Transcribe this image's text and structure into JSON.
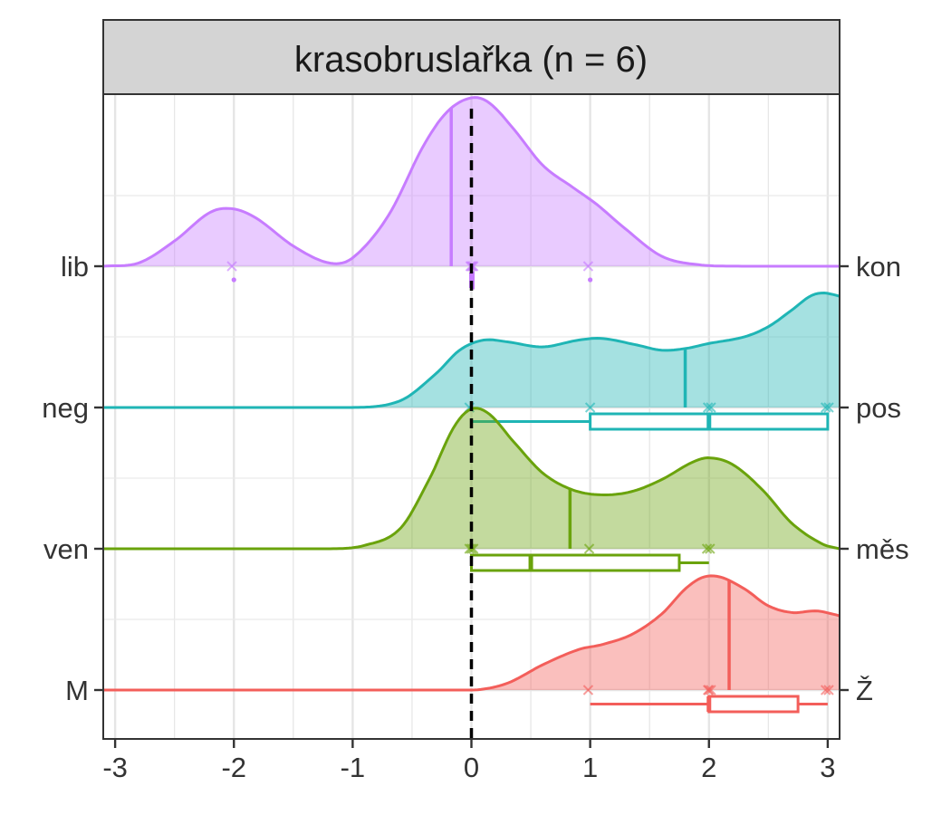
{
  "chart_data": {
    "type": "ridgeline",
    "title": "krasobruslařka (n = 6)",
    "xlabel": "",
    "ylabel": "",
    "xlim": [
      -3.1,
      3.1
    ],
    "x_ticks": [
      -3,
      -2,
      -1,
      0,
      1,
      2,
      3
    ],
    "x_tick_labels": [
      "-3",
      "-2",
      "-1",
      "0",
      "1",
      "2",
      "3"
    ],
    "reference_line_x": 0,
    "grid": true,
    "rows": [
      {
        "left_label": "lib",
        "right_label": "kon",
        "color": "#C77CFF",
        "observations": [
          -2,
          0,
          0,
          0,
          0,
          1
        ],
        "mean": -0.17,
        "density": [
          [
            -3.1,
            0.0
          ],
          [
            -2.8,
            0.02
          ],
          [
            -2.5,
            0.15
          ],
          [
            -2.2,
            0.32
          ],
          [
            -2.0,
            0.34
          ],
          [
            -1.8,
            0.28
          ],
          [
            -1.5,
            0.12
          ],
          [
            -1.2,
            0.02
          ],
          [
            -1.0,
            0.05
          ],
          [
            -0.7,
            0.3
          ],
          [
            -0.4,
            0.72
          ],
          [
            -0.2,
            0.92
          ],
          [
            0.0,
            1.0
          ],
          [
            0.15,
            0.97
          ],
          [
            0.35,
            0.82
          ],
          [
            0.6,
            0.6
          ],
          [
            0.85,
            0.47
          ],
          [
            1.05,
            0.37
          ],
          [
            1.3,
            0.22
          ],
          [
            1.6,
            0.06
          ],
          [
            1.9,
            0.01
          ],
          [
            2.3,
            0.0
          ],
          [
            3.1,
            0.0
          ]
        ],
        "box": {
          "min": 0,
          "q1": 0,
          "median": 0,
          "q3": 0,
          "max": 0,
          "outliers": [
            -2,
            1
          ]
        }
      },
      {
        "left_label": "neg",
        "right_label": "pos",
        "color": "#1FB5B5",
        "observations": [
          0,
          1,
          2,
          2,
          3,
          3
        ],
        "mean": 1.8,
        "density": [
          [
            -3.1,
            0.0
          ],
          [
            -1.0,
            0.0
          ],
          [
            -0.6,
            0.04
          ],
          [
            -0.3,
            0.2
          ],
          [
            -0.1,
            0.34
          ],
          [
            0.1,
            0.4
          ],
          [
            0.3,
            0.39
          ],
          [
            0.6,
            0.36
          ],
          [
            0.9,
            0.4
          ],
          [
            1.1,
            0.41
          ],
          [
            1.4,
            0.37
          ],
          [
            1.6,
            0.34
          ],
          [
            1.8,
            0.35
          ],
          [
            2.0,
            0.38
          ],
          [
            2.3,
            0.42
          ],
          [
            2.5,
            0.48
          ],
          [
            2.7,
            0.58
          ],
          [
            2.85,
            0.66
          ],
          [
            2.95,
            0.68
          ],
          [
            3.05,
            0.67
          ],
          [
            3.1,
            0.66
          ]
        ],
        "box": {
          "min": 0,
          "q1": 1,
          "median": 2,
          "q3": 3,
          "max": 3,
          "outliers": []
        }
      },
      {
        "left_label": "ven",
        "right_label": "měs",
        "color": "#6AA30C",
        "observations": [
          0,
          0,
          0,
          1,
          2,
          2
        ],
        "mean": 0.83,
        "density": [
          [
            -3.1,
            0.0
          ],
          [
            -1.2,
            0.0
          ],
          [
            -0.9,
            0.02
          ],
          [
            -0.6,
            0.12
          ],
          [
            -0.35,
            0.42
          ],
          [
            -0.15,
            0.72
          ],
          [
            0.0,
            0.83
          ],
          [
            0.15,
            0.8
          ],
          [
            0.35,
            0.64
          ],
          [
            0.6,
            0.45
          ],
          [
            0.85,
            0.35
          ],
          [
            1.1,
            0.32
          ],
          [
            1.35,
            0.34
          ],
          [
            1.6,
            0.41
          ],
          [
            1.85,
            0.51
          ],
          [
            2.0,
            0.54
          ],
          [
            2.2,
            0.5
          ],
          [
            2.45,
            0.35
          ],
          [
            2.7,
            0.15
          ],
          [
            2.95,
            0.03
          ],
          [
            3.1,
            0.0
          ]
        ],
        "box": {
          "min": 0,
          "q1": 0,
          "median": 0.5,
          "q3": 1.75,
          "max": 2,
          "outliers": []
        }
      },
      {
        "left_label": "M",
        "right_label": "Ž",
        "color": "#F35E5A",
        "observations": [
          1,
          2,
          2,
          2,
          3,
          3
        ],
        "mean": 2.17,
        "density": [
          [
            -3.1,
            0.0
          ],
          [
            0.0,
            0.0
          ],
          [
            0.3,
            0.04
          ],
          [
            0.6,
            0.15
          ],
          [
            0.9,
            0.24
          ],
          [
            1.1,
            0.27
          ],
          [
            1.35,
            0.33
          ],
          [
            1.6,
            0.45
          ],
          [
            1.8,
            0.6
          ],
          [
            1.95,
            0.67
          ],
          [
            2.1,
            0.67
          ],
          [
            2.3,
            0.6
          ],
          [
            2.5,
            0.5
          ],
          [
            2.7,
            0.46
          ],
          [
            2.9,
            0.47
          ],
          [
            3.05,
            0.45
          ],
          [
            3.1,
            0.44
          ]
        ],
        "box": {
          "min": 1,
          "q1": 2,
          "median": 2,
          "q3": 2.75,
          "max": 3,
          "outliers": []
        }
      }
    ]
  }
}
